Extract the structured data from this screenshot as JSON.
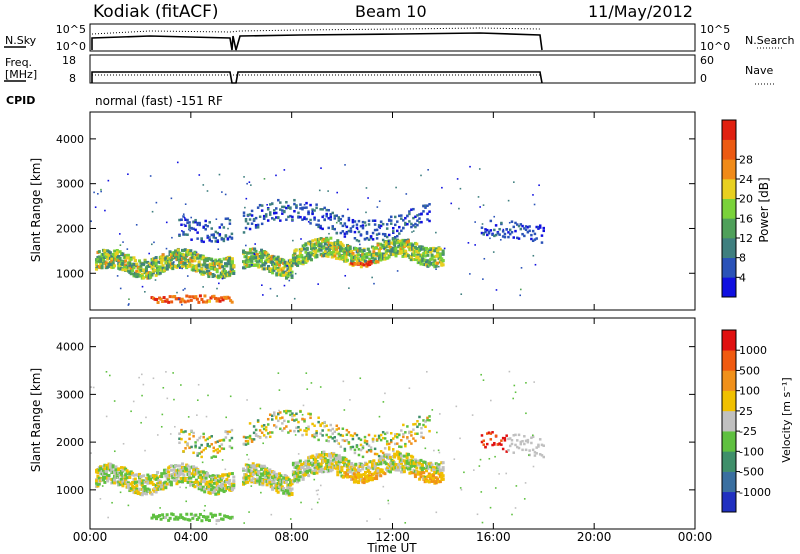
{
  "header": {
    "station": "Kodiak (fitACF)",
    "beam": "Beam 10",
    "date": "11/May/2012"
  },
  "top_panels": {
    "nsky": {
      "label": "N.Sky",
      "ticks": [
        "10^5",
        "10^0"
      ]
    },
    "nsearch": {
      "label": "N.Search",
      "ticks": [
        "10^5",
        "10^0"
      ]
    },
    "freq": {
      "label_line1": "Freq.",
      "label_line2": "[MHz]",
      "ticks": [
        "18",
        "8"
      ]
    },
    "nave": {
      "label": "Nave",
      "ticks": [
        "60",
        "0"
      ]
    },
    "cpid": {
      "label": "CPID",
      "value": "normal (fast) -151 RF"
    }
  },
  "chart_data": [
    {
      "type": "heatmap",
      "name": "power-panel",
      "xlabel": "",
      "ylabel": "Slant Range [km]",
      "xlim_hours": [
        0,
        24
      ],
      "ylim_km": [
        180,
        4600
      ],
      "yticks": [
        1000,
        2000,
        3000,
        4000
      ],
      "colorbar": {
        "label": "Power [dB]",
        "ticks": [
          "4",
          "8",
          "12",
          "16",
          "20",
          "24",
          "28"
        ],
        "colors": [
          "#1010e0",
          "#2a52b8",
          "#3f7f7f",
          "#4fa05a",
          "#7ad23a",
          "#e8d020",
          "#f08a18",
          "#ec5a12",
          "#e02010"
        ]
      }
    },
    {
      "type": "heatmap",
      "name": "velocity-panel",
      "xlabel": "Time UT",
      "ylabel": "Slant Range [km]",
      "xlim_hours": [
        0,
        24
      ],
      "ylim_km": [
        180,
        4600
      ],
      "yticks": [
        1000,
        2000,
        3000,
        4000
      ],
      "xticks": [
        "00:00",
        "04:00",
        "08:00",
        "12:00",
        "16:00",
        "20:00",
        "00:00"
      ],
      "colorbar": {
        "label": "Velocity [m s⁻¹]",
        "ticks": [
          "1000",
          "500",
          "100",
          "25",
          "-25",
          "-100",
          "-500",
          "-1000"
        ],
        "colors": [
          "#2030c0",
          "#3a6fa0",
          "#3f8f6a",
          "#5fc040",
          "#c0c0c0",
          "#f0c000",
          "#f0901a",
          "#f05a10",
          "#e01010"
        ]
      }
    }
  ]
}
